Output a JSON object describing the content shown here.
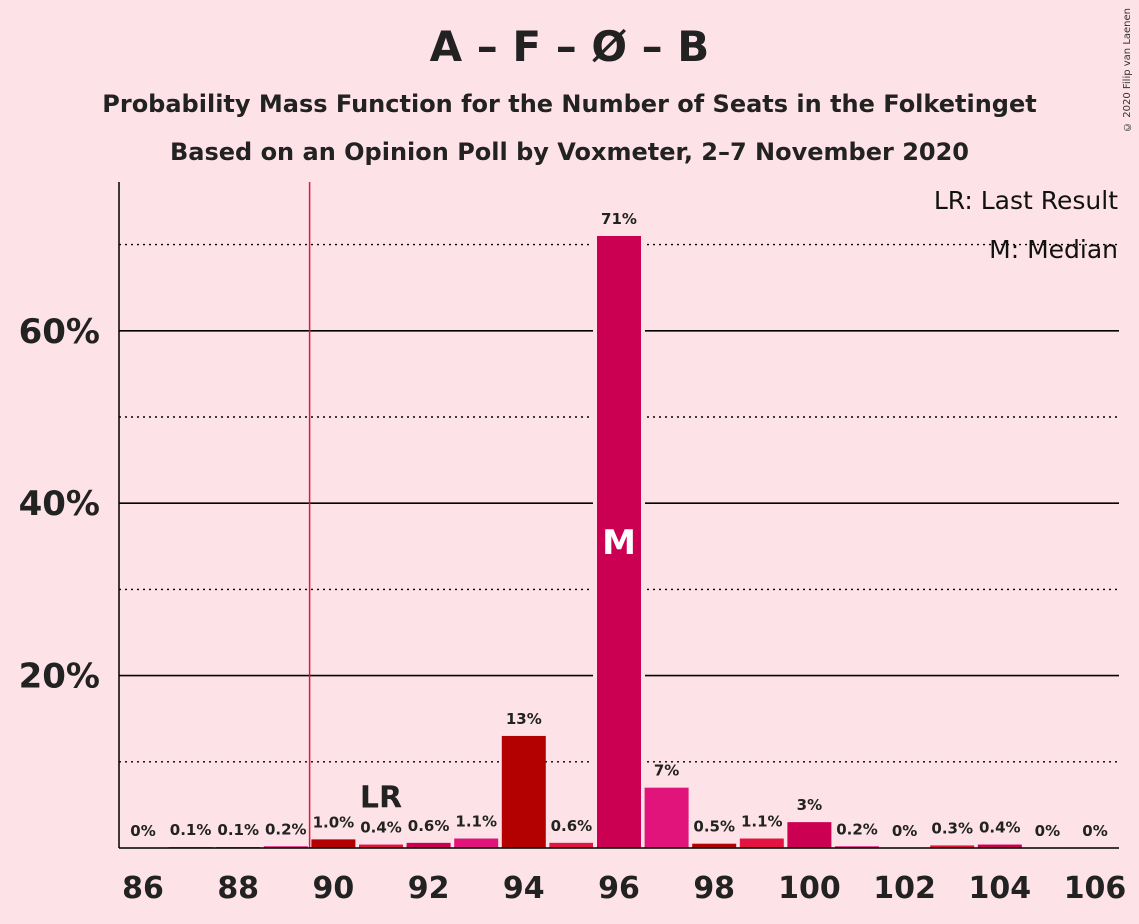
{
  "header": {
    "title": "A – F – Ø – B",
    "subtitle_1": "Probability Mass Function for the Number of Seats in the Folketinget",
    "subtitle_2": "Based on an Opinion Poll by Voxmeter, 2–7 November 2020",
    "copyright": "© 2020 Filip van Laenen"
  },
  "legend": {
    "last_result": "LR: Last Result",
    "median": "M: Median"
  },
  "markers": {
    "last_result_label": "LR",
    "median_label": "M",
    "last_result_seat": 89.5,
    "median_seat": 96
  },
  "colors": {
    "background": "#FDE3E7",
    "bar_colors": [
      "#B30000",
      "#E31441",
      "#CC0052",
      "#E0147A"
    ],
    "last_result_line": "#E31441",
    "grid": "#000000"
  },
  "chart_data": {
    "type": "bar",
    "title": "A – F – Ø – B",
    "xlabel": "",
    "ylabel": "",
    "ylim": [
      0,
      77
    ],
    "grid": true,
    "legend_position": "top-right",
    "y_ticks": [
      {
        "value": 20,
        "label": "20%"
      },
      {
        "value": 40,
        "label": "40%"
      },
      {
        "value": 60,
        "label": "60%"
      }
    ],
    "x_tick_labels": [
      "86",
      "88",
      "90",
      "92",
      "94",
      "96",
      "98",
      "100",
      "102",
      "104",
      "106"
    ],
    "categories": [
      86,
      87,
      88,
      89,
      90,
      91,
      92,
      93,
      94,
      95,
      96,
      97,
      98,
      99,
      100,
      101,
      102,
      103,
      104,
      105,
      106
    ],
    "values": [
      0,
      0.1,
      0.1,
      0.2,
      1.0,
      0.4,
      0.6,
      1.1,
      13,
      0.6,
      71,
      7,
      0.5,
      1.1,
      3,
      0.2,
      0,
      0.3,
      0.4,
      0,
      0
    ],
    "labels": [
      "0%",
      "0.1%",
      "0.1%",
      "0.2%",
      "1.0%",
      "0.4%",
      "0.6%",
      "1.1%",
      "13%",
      "0.6%",
      "71%",
      "7%",
      "0.5%",
      "1.1%",
      "3%",
      "0.2%",
      "0%",
      "0.3%",
      "0.4%",
      "0%",
      "0%"
    ]
  }
}
